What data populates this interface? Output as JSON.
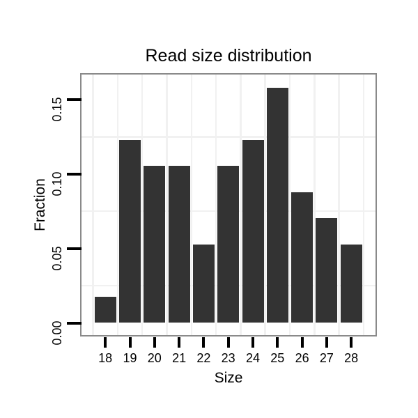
{
  "chart_data": {
    "type": "bar",
    "title": "Read size distribution",
    "xlabel": "Size",
    "ylabel": "Fraction",
    "categories": [
      18,
      19,
      20,
      21,
      22,
      23,
      24,
      25,
      26,
      27,
      28
    ],
    "values": [
      0.0175,
      0.1228,
      0.1053,
      0.1053,
      0.0526,
      0.1053,
      0.1228,
      0.1579,
      0.0877,
      0.0702,
      0.0526
    ],
    "x_tick_labels": [
      "18",
      "19",
      "20",
      "21",
      "22",
      "23",
      "24",
      "25",
      "26",
      "27",
      "28"
    ],
    "y_ticks": [
      {
        "label": "0.00",
        "value": 0.0
      },
      {
        "label": "0.05",
        "value": 0.05
      },
      {
        "label": "0.10",
        "value": 0.1
      },
      {
        "label": "0.15",
        "value": 0.15
      }
    ],
    "y_minor_gridlines": [
      0.025,
      0.075,
      0.125
    ],
    "ylim": [
      0,
      0.167
    ],
    "grid": "minor-only",
    "legend": "none",
    "colors": {
      "bar": "#333333",
      "panel_border": "#8a8a8a",
      "gridline": "#f1f1f1",
      "tick": "#000000",
      "text": "#000000",
      "background": "#ffffff"
    }
  }
}
